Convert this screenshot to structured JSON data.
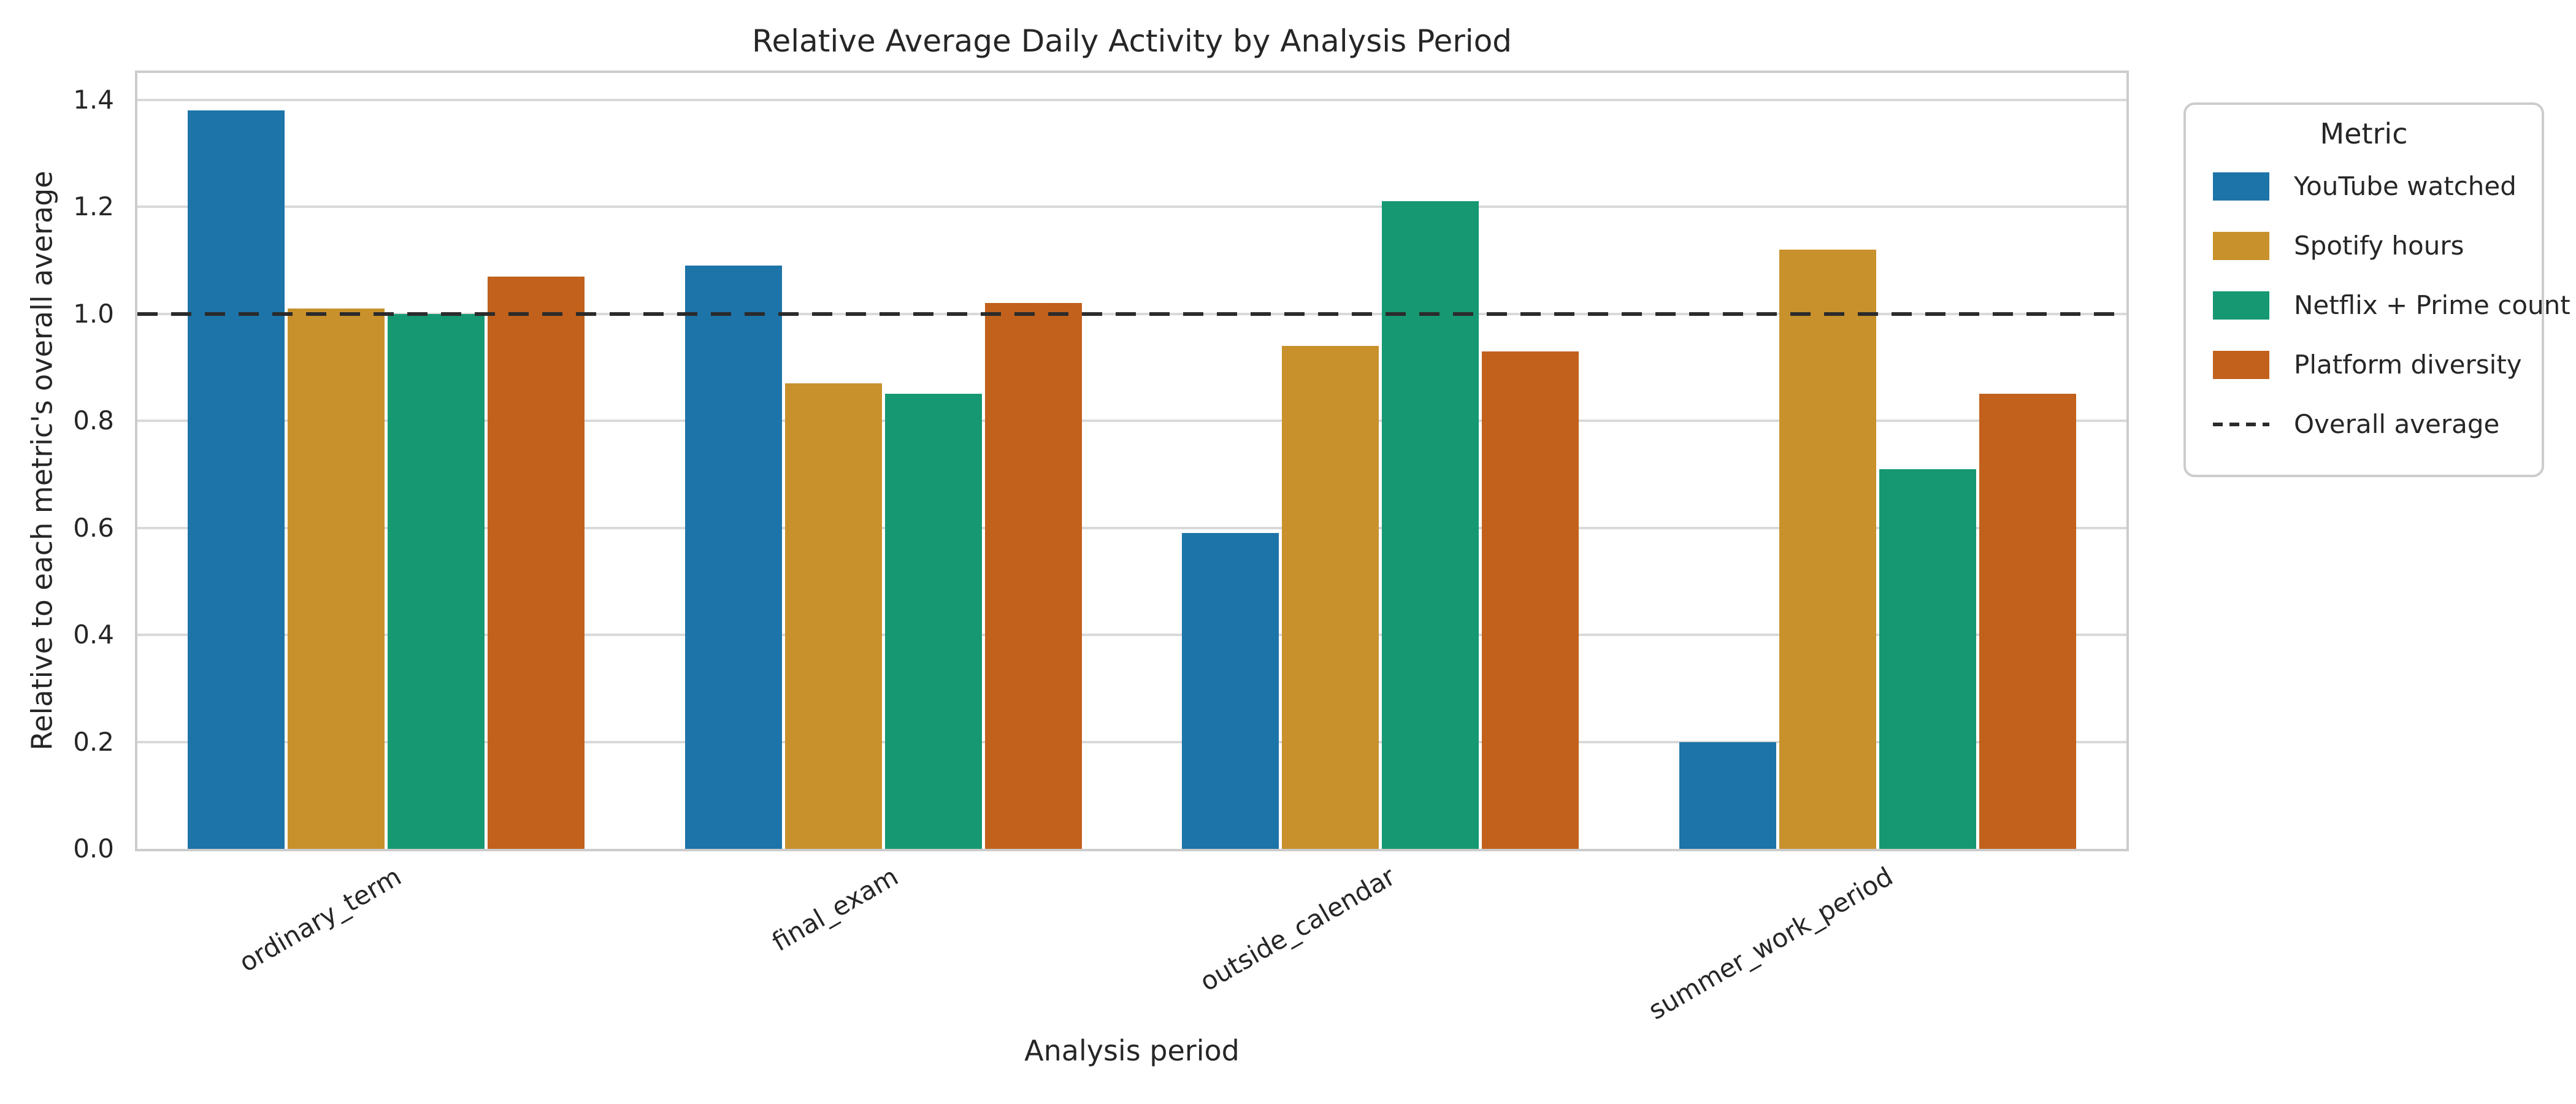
{
  "title": "Relative Average Daily Activity by Analysis Period",
  "chart_data": {
    "type": "bar",
    "title": "Relative Average Daily Activity by Analysis Period",
    "xlabel": "Analysis period",
    "ylabel": "Relative to each metric's overall average",
    "categories": [
      "ordinary_term",
      "final_exam",
      "outside_calendar",
      "summer_work_period"
    ],
    "series": [
      {
        "name": "YouTube watched",
        "color": "#1d74a8",
        "values": [
          1.38,
          1.09,
          0.59,
          0.2
        ]
      },
      {
        "name": "Spotify hours",
        "color": "#c8912b",
        "values": [
          1.01,
          0.87,
          0.94,
          1.12
        ]
      },
      {
        "name": "Netflix + Prime count",
        "color": "#169873",
        "values": [
          1.0,
          0.85,
          1.21,
          0.71
        ]
      },
      {
        "name": "Platform diversity",
        "color": "#c2611c",
        "values": [
          1.07,
          1.02,
          0.93,
          0.85
        ]
      }
    ],
    "reference_line": {
      "label": "Overall average",
      "value": 1.0,
      "style": "dashed",
      "color": "#2b2b2b"
    },
    "ylim": [
      0,
      1.45
    ],
    "yticks": [
      0.0,
      0.2,
      0.4,
      0.6,
      0.8,
      1.0,
      1.2,
      1.4
    ],
    "grid": true,
    "legend_title": "Metric",
    "legend_position": "outside-upper-right",
    "background": "#ffffff",
    "grid_color": "#d9d9d9",
    "spine_color": "#cccccc"
  }
}
